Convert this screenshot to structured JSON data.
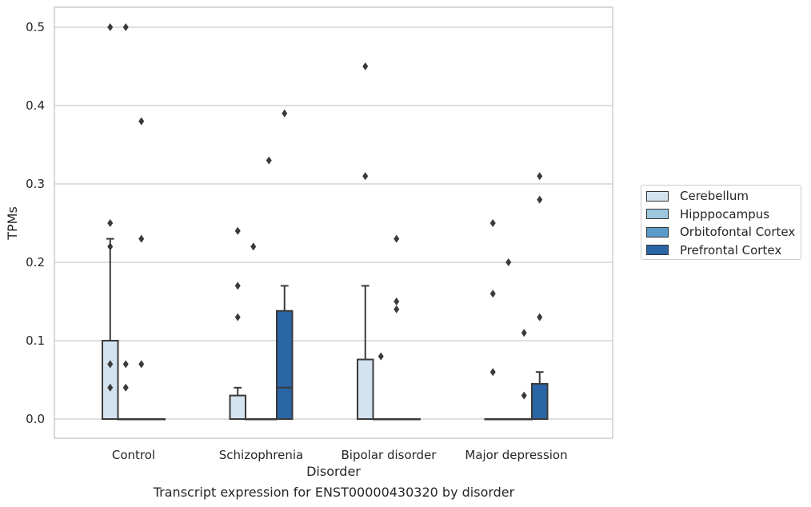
{
  "caption": "Transcript expression for ENST00000430320 by disorder",
  "chart_data": {
    "type": "box",
    "title": "",
    "xlabel": "Disorder",
    "ylabel": "TPMs",
    "ylim": [
      -0.025,
      0.525
    ],
    "yticks": [
      "0.0",
      "0.1",
      "0.2",
      "0.3",
      "0.4",
      "0.5"
    ],
    "categories": [
      "Control",
      "Schizophrenia",
      "Bipolar disorder",
      "Major depression"
    ],
    "legend_position": "right",
    "grid": true,
    "series": [
      {
        "name": "Cerebellum",
        "color": "#d4e3f0",
        "boxes": [
          {
            "q1": 0.0,
            "median": 0.0,
            "q3": 0.1,
            "whisker_low": 0.0,
            "whisker_high": 0.23,
            "outliers": [
              0.04,
              0.07,
              0.22,
              0.25,
              0.5
            ]
          },
          {
            "q1": 0.0,
            "median": 0.0,
            "q3": 0.03,
            "whisker_low": 0.0,
            "whisker_high": 0.04,
            "outliers": [
              0.13,
              0.17,
              0.24
            ]
          },
          {
            "q1": 0.0,
            "median": 0.0,
            "q3": 0.076,
            "whisker_low": 0.0,
            "whisker_high": 0.17,
            "outliers": [
              0.31,
              0.45
            ]
          },
          {
            "q1": 0.0,
            "median": 0.0,
            "q3": 0.0,
            "whisker_low": 0.0,
            "whisker_high": 0.0,
            "outliers": [
              0.06,
              0.16,
              0.25
            ]
          }
        ]
      },
      {
        "name": "Hipppocampus",
        "color": "#9dc6df",
        "boxes": [
          {
            "q1": 0.0,
            "median": 0.0,
            "q3": 0.0,
            "whisker_low": 0.0,
            "whisker_high": 0.0,
            "outliers": [
              0.04,
              0.07,
              0.5
            ]
          },
          {
            "q1": 0.0,
            "median": 0.0,
            "q3": 0.0,
            "whisker_low": 0.0,
            "whisker_high": 0.0,
            "outliers": [
              0.22
            ]
          },
          {
            "q1": 0.0,
            "median": 0.0,
            "q3": 0.0,
            "whisker_low": 0.0,
            "whisker_high": 0.0,
            "outliers": [
              0.08
            ]
          },
          {
            "q1": 0.0,
            "median": 0.0,
            "q3": 0.0,
            "whisker_low": 0.0,
            "whisker_high": 0.0,
            "outliers": [
              0.2
            ]
          }
        ]
      },
      {
        "name": "Orbitofontal Cortex",
        "color": "#5b9bc9",
        "boxes": [
          {
            "q1": 0.0,
            "median": 0.0,
            "q3": 0.0,
            "whisker_low": 0.0,
            "whisker_high": 0.0,
            "outliers": [
              0.07,
              0.23,
              0.38
            ]
          },
          {
            "q1": 0.0,
            "median": 0.0,
            "q3": 0.0,
            "whisker_low": 0.0,
            "whisker_high": 0.0,
            "outliers": [
              0.33
            ]
          },
          {
            "q1": 0.0,
            "median": 0.0,
            "q3": 0.0,
            "whisker_low": 0.0,
            "whisker_high": 0.0,
            "outliers": [
              0.14,
              0.15,
              0.23
            ]
          },
          {
            "q1": 0.0,
            "median": 0.0,
            "q3": 0.0,
            "whisker_low": 0.0,
            "whisker_high": 0.0,
            "outliers": [
              0.03,
              0.11
            ]
          }
        ]
      },
      {
        "name": "Prefrontal Cortex",
        "color": "#2a65a6",
        "boxes": [
          {
            "q1": 0.0,
            "median": 0.0,
            "q3": 0.0,
            "whisker_low": 0.0,
            "whisker_high": 0.0,
            "outliers": []
          },
          {
            "q1": 0.0,
            "median": 0.04,
            "q3": 0.138,
            "whisker_low": 0.0,
            "whisker_high": 0.17,
            "outliers": [
              0.39
            ]
          },
          {
            "q1": 0.0,
            "median": 0.0,
            "q3": 0.0,
            "whisker_low": 0.0,
            "whisker_high": 0.0,
            "outliers": []
          },
          {
            "q1": 0.0,
            "median": 0.0,
            "q3": 0.045,
            "whisker_low": 0.0,
            "whisker_high": 0.06,
            "outliers": [
              0.13,
              0.28,
              0.31
            ]
          }
        ]
      }
    ]
  }
}
